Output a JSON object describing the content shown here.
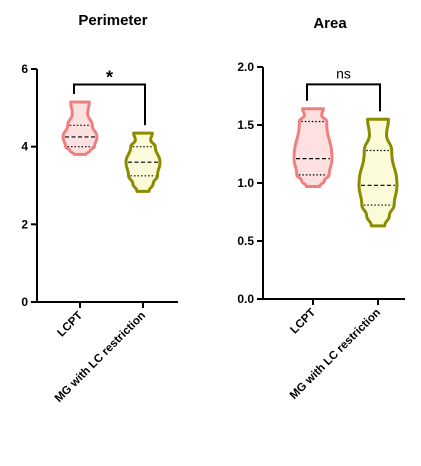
{
  "chart_data": [
    {
      "type": "violin",
      "title": "Perimeter",
      "categories": [
        "LCPT",
        "MG with LC restriction"
      ],
      "ylim": [
        0,
        6
      ],
      "yticks": [
        0,
        2,
        4,
        6
      ],
      "ytick_labels": [
        "0",
        "2",
        "4",
        "6"
      ],
      "series": [
        {
          "category": "LCPT",
          "min": 3.8,
          "q1": 4.0,
          "median": 4.25,
          "q3": 4.55,
          "max": 5.15,
          "color": "#f08080",
          "fill": "#fde0e0"
        },
        {
          "category": "MG with LC restriction",
          "min": 2.85,
          "q1": 3.25,
          "median": 3.6,
          "q3": 4.0,
          "max": 4.35,
          "color": "#8b8b00",
          "fill": "#fbfbd9"
        }
      ],
      "significance": {
        "label": "*",
        "y": 5.6
      }
    },
    {
      "type": "violin",
      "title": "Area",
      "categories": [
        "LCPT",
        "MG with LC restriction"
      ],
      "ylim": [
        0,
        2
      ],
      "yticks": [
        0,
        0.5,
        1.0,
        1.5,
        2.0
      ],
      "ytick_labels": [
        "0.0",
        "0.5",
        "1.0",
        "1.5",
        "2.0"
      ],
      "series": [
        {
          "category": "LCPT",
          "min": 0.97,
          "q1": 1.07,
          "median": 1.21,
          "q3": 1.53,
          "max": 1.64,
          "color": "#f08080",
          "fill": "#fde0e0"
        },
        {
          "category": "MG with LC restriction",
          "min": 0.63,
          "q1": 0.81,
          "median": 0.98,
          "q3": 1.28,
          "max": 1.55,
          "color": "#8b8b00",
          "fill": "#fbfbd9"
        }
      ],
      "significance": {
        "label": "ns",
        "y": 1.85
      }
    }
  ]
}
